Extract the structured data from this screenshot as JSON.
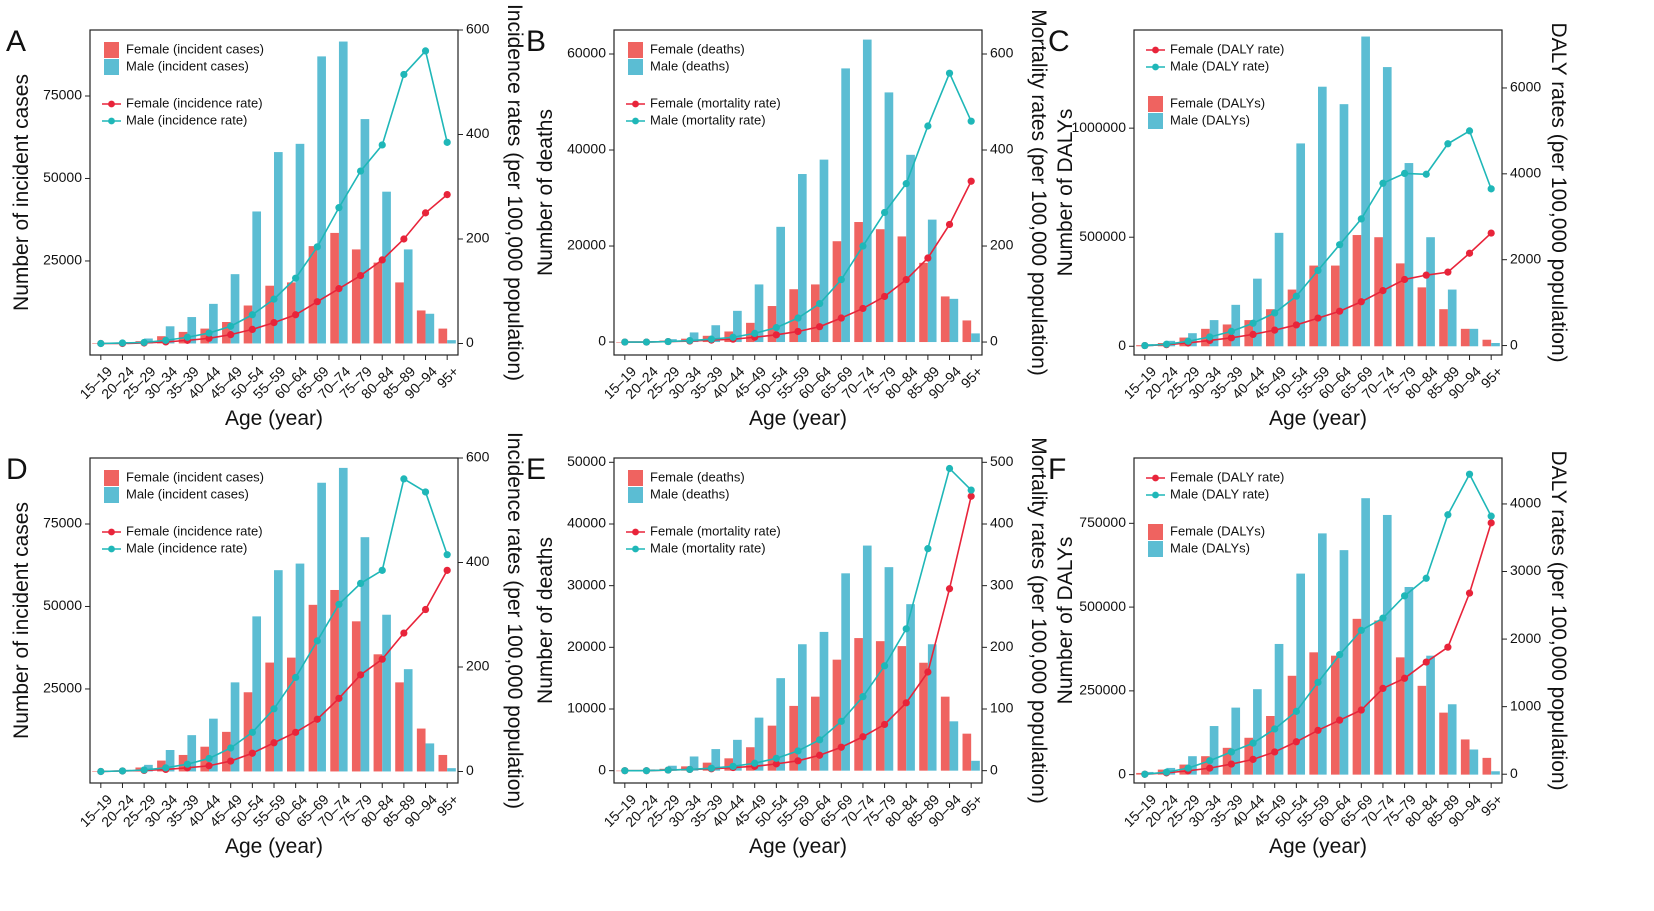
{
  "categories": [
    "15–19",
    "20–24",
    "25–29",
    "30–34",
    "35–39",
    "40–44",
    "45–49",
    "50–54",
    "55–59",
    "60–64",
    "65–69",
    "70–74",
    "75–79",
    "80–84",
    "85–89",
    "90–94",
    "95+"
  ],
  "colors": {
    "female": "#ef6360",
    "male": "#5bbdd3",
    "female_line": "#e8243a",
    "male_line": "#1fb7b8"
  },
  "chart_data": [
    {
      "type": "bar+line",
      "panel": "A",
      "xlabel": "Age (year)",
      "ylabel": "Number of incident cases",
      "y2label": "Incidence rates (per 100,000 population)",
      "ylim": [
        -3500,
        95000
      ],
      "y2lim": [
        -22,
        600
      ],
      "yticks": [
        25000,
        50000,
        75000
      ],
      "y2ticks": [
        0,
        200,
        400,
        600
      ],
      "bars_first": true,
      "bar_series": [
        {
          "name": "Female (incident cases)",
          "values": [
            0,
            200,
            700,
            2200,
            3500,
            4500,
            6500,
            11500,
            17500,
            18500,
            29500,
            33500,
            28500,
            24500,
            18500,
            10000,
            4500
          ]
        },
        {
          "name": "Male (incident cases)",
          "values": [
            0,
            300,
            1500,
            5200,
            8000,
            12000,
            21000,
            40000,
            58000,
            60500,
            87000,
            91500,
            68000,
            46000,
            28500,
            9000,
            1000
          ]
        }
      ],
      "line_series": [
        {
          "name": "Female (incidence rate)",
          "values": [
            0,
            0,
            1,
            3,
            6,
            10,
            17,
            27,
            40,
            55,
            80,
            105,
            130,
            160,
            200,
            250,
            285
          ]
        },
        {
          "name": "Male (incidence rate)",
          "values": [
            0,
            1,
            2,
            6,
            12,
            20,
            33,
            55,
            85,
            125,
            185,
            260,
            330,
            380,
            515,
            560,
            385
          ]
        }
      ]
    },
    {
      "type": "bar+line",
      "panel": "B",
      "xlabel": "Age (year)",
      "ylabel": "Number of deaths",
      "y2label": "Mortality rates (per 100,000 population)",
      "ylim": [
        -2700,
        65000
      ],
      "y2lim": [
        -27,
        650
      ],
      "yticks": [
        0,
        20000,
        40000,
        60000
      ],
      "y2ticks": [
        0,
        200,
        400,
        600
      ],
      "bars_first": true,
      "bar_series": [
        {
          "name": "Female (deaths)",
          "values": [
            0,
            100,
            300,
            700,
            1300,
            2200,
            4000,
            7500,
            11000,
            12000,
            21000,
            25000,
            23500,
            22000,
            16500,
            9500,
            4500
          ]
        },
        {
          "name": "Male (deaths)",
          "values": [
            0,
            200,
            600,
            2000,
            3500,
            6500,
            12000,
            24000,
            35000,
            38000,
            57000,
            63000,
            52000,
            39000,
            25500,
            9000,
            1800
          ]
        }
      ],
      "line_series": [
        {
          "name": "Female (mortality rate)",
          "values": [
            0,
            0,
            1,
            2,
            4,
            6,
            10,
            15,
            22,
            32,
            50,
            70,
            95,
            130,
            175,
            245,
            335
          ]
        },
        {
          "name": "Male (mortality rate)",
          "values": [
            0,
            0,
            1,
            3,
            6,
            10,
            18,
            30,
            50,
            80,
            130,
            200,
            270,
            330,
            450,
            560,
            460
          ]
        }
      ]
    },
    {
      "type": "bar+line",
      "panel": "C",
      "xlabel": "Age (year)",
      "ylabel": "Number of DALYs",
      "y2label": "DALY rates (per 100,000 population)",
      "ylim": [
        -40000,
        1450000
      ],
      "y2lim": [
        -220,
        7350
      ],
      "yticks": [
        0,
        500000,
        1000000
      ],
      "y2ticks": [
        0,
        2000,
        4000,
        6000
      ],
      "bars_first": false,
      "bar_series": [
        {
          "name": "Female (DALYs)",
          "values": [
            5000,
            15000,
            40000,
            80000,
            100000,
            120000,
            170000,
            260000,
            370000,
            370000,
            510000,
            500000,
            380000,
            270000,
            170000,
            80000,
            30000
          ]
        },
        {
          "name": "Male (DALYs)",
          "values": [
            10000,
            25000,
            60000,
            120000,
            190000,
            310000,
            520000,
            930000,
            1190000,
            1110000,
            1420000,
            1280000,
            840000,
            500000,
            260000,
            80000,
            15000
          ]
        }
      ],
      "line_series": [
        {
          "name": "Female (DALY rate)",
          "values": [
            0,
            20,
            60,
            120,
            180,
            260,
            360,
            480,
            640,
            800,
            1020,
            1280,
            1540,
            1640,
            1710,
            2150,
            2620
          ]
        },
        {
          "name": "Male (DALY rate)",
          "values": [
            0,
            30,
            100,
            200,
            330,
            520,
            760,
            1150,
            1750,
            2350,
            2950,
            3780,
            4010,
            3990,
            4700,
            5000,
            3650
          ]
        }
      ]
    },
    {
      "type": "bar+line",
      "panel": "D",
      "xlabel": "Age (year)",
      "ylabel": "Number of incident cases",
      "y2label": "Incidence rates (per 100,000 population)",
      "ylim": [
        -3500,
        95000
      ],
      "y2lim": [
        -22,
        600
      ],
      "yticks": [
        25000,
        50000,
        75000
      ],
      "y2ticks": [
        0,
        200,
        400,
        600
      ],
      "bars_first": true,
      "bar_series": [
        {
          "name": "Female (incident cases)",
          "values": [
            0,
            300,
            1200,
            3300,
            5000,
            7500,
            12000,
            24000,
            33000,
            34500,
            50500,
            55000,
            45500,
            35500,
            27000,
            13000,
            5000
          ]
        },
        {
          "name": "Male (incident cases)",
          "values": [
            0,
            500,
            2000,
            6500,
            11000,
            16000,
            27000,
            47000,
            61000,
            63000,
            87500,
            92000,
            71000,
            47500,
            31000,
            8500,
            1000
          ]
        }
      ],
      "line_series": [
        {
          "name": "Female (incidence rate)",
          "values": [
            0,
            1,
            2,
            4,
            7,
            11,
            20,
            35,
            55,
            75,
            100,
            140,
            185,
            215,
            265,
            310,
            385
          ]
        },
        {
          "name": "Male (incidence rate)",
          "values": [
            0,
            1,
            3,
            7,
            14,
            25,
            45,
            75,
            120,
            180,
            250,
            320,
            360,
            385,
            560,
            535,
            415
          ]
        }
      ]
    },
    {
      "type": "bar+line",
      "panel": "E",
      "xlabel": "Age (year)",
      "ylabel": "Number of deaths",
      "y2label": "Mortality rates (per 100,000 population)",
      "ylim": [
        -2000,
        50700
      ],
      "y2lim": [
        -20,
        507
      ],
      "yticks": [
        0,
        10000,
        20000,
        30000,
        40000,
        50000
      ],
      "y2ticks": [
        0,
        100,
        200,
        300,
        400,
        500
      ],
      "bars_first": true,
      "bar_series": [
        {
          "name": "Female (deaths)",
          "values": [
            0,
            100,
            300,
            700,
            1300,
            2000,
            3800,
            7300,
            10500,
            12000,
            18000,
            21500,
            21000,
            20200,
            17500,
            12000,
            6000
          ]
        },
        {
          "name": "Male (deaths)",
          "values": [
            0,
            200,
            800,
            2300,
            3500,
            5000,
            8600,
            15000,
            20500,
            22500,
            32000,
            36500,
            33000,
            27000,
            20500,
            8000,
            1600
          ]
        }
      ],
      "line_series": [
        {
          "name": "Female (mortality rate)",
          "values": [
            0,
            0,
            1,
            2,
            3,
            5,
            7,
            11,
            16,
            25,
            38,
            55,
            75,
            110,
            160,
            295,
            445
          ]
        },
        {
          "name": "Male (mortality rate)",
          "values": [
            0,
            0,
            1,
            2,
            4,
            7,
            12,
            20,
            32,
            50,
            80,
            120,
            170,
            230,
            360,
            490,
            455
          ]
        }
      ]
    },
    {
      "type": "bar+line",
      "panel": "F",
      "xlabel": "Age (year)",
      "ylabel": "Number of DALYs",
      "y2label": "DALY rates (per 100,000 population)",
      "ylim": [
        -25000,
        945000
      ],
      "y2lim": [
        -130,
        4680
      ],
      "yticks": [
        0,
        250000,
        500000,
        750000
      ],
      "y2ticks": [
        0,
        1000,
        2000,
        3000,
        4000
      ],
      "bars_first": false,
      "bar_series": [
        {
          "name": "Female (DALYs)",
          "values": [
            5000,
            15000,
            30000,
            55000,
            80000,
            110000,
            175000,
            295000,
            365000,
            355000,
            465000,
            460000,
            350000,
            265000,
            185000,
            105000,
            50000
          ]
        },
        {
          "name": "Male (DALYs)",
          "values": [
            8000,
            20000,
            55000,
            145000,
            200000,
            255000,
            390000,
            600000,
            720000,
            670000,
            825000,
            775000,
            560000,
            355000,
            210000,
            75000,
            10000
          ]
        }
      ],
      "line_series": [
        {
          "name": "Female (DALY rate)",
          "values": [
            0,
            20,
            50,
            90,
            150,
            220,
            330,
            480,
            650,
            800,
            950,
            1270,
            1420,
            1660,
            1880,
            2680,
            3720
          ]
        },
        {
          "name": "Male (DALY rate)",
          "values": [
            0,
            30,
            90,
            200,
            330,
            460,
            670,
            930,
            1360,
            1770,
            2130,
            2310,
            2640,
            2900,
            3840,
            4440,
            3820
          ]
        }
      ]
    }
  ]
}
